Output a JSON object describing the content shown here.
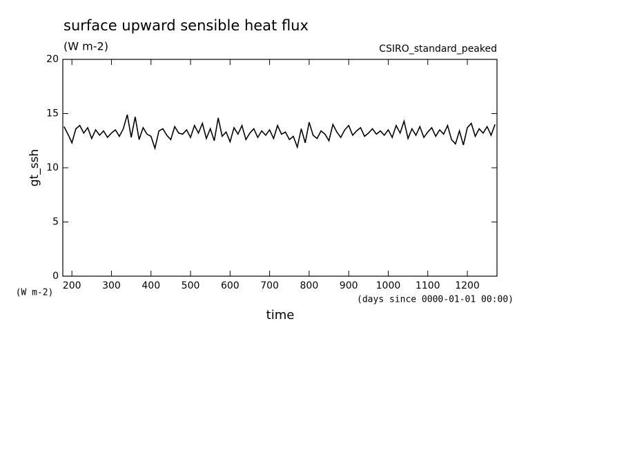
{
  "chart_data": {
    "type": "line",
    "title": "surface upward sensible heat flux",
    "subtitle": "(W m-2)",
    "annotation": "CSIRO_standard_peaked",
    "y_label": "gt_ssh",
    "y_units": "(W m-2)",
    "x_label": "time",
    "x_units": "(days since 0000-01-01 00:00)",
    "x": [
      180,
      190,
      200,
      210,
      220,
      230,
      240,
      250,
      260,
      270,
      280,
      290,
      300,
      310,
      320,
      330,
      340,
      350,
      360,
      370,
      380,
      390,
      400,
      410,
      420,
      430,
      440,
      450,
      460,
      470,
      480,
      490,
      500,
      510,
      520,
      530,
      540,
      550,
      560,
      570,
      580,
      590,
      600,
      610,
      620,
      630,
      640,
      650,
      660,
      670,
      680,
      690,
      700,
      710,
      720,
      730,
      740,
      750,
      760,
      770,
      780,
      790,
      800,
      810,
      820,
      830,
      840,
      850,
      860,
      870,
      880,
      890,
      900,
      910,
      920,
      930,
      940,
      950,
      960,
      970,
      980,
      990,
      1000,
      1010,
      1020,
      1030,
      1040,
      1050,
      1060,
      1070,
      1080,
      1090,
      1100,
      1110,
      1120,
      1130,
      1140,
      1150,
      1160,
      1170,
      1180,
      1190,
      1200,
      1210,
      1220,
      1230,
      1240,
      1250,
      1260,
      1270
    ],
    "series": [
      {
        "name": "gt_ssh",
        "color": "#000000",
        "values": [
          13.8,
          13.1,
          12.3,
          13.6,
          13.9,
          13.2,
          13.7,
          12.7,
          13.5,
          13.0,
          13.4,
          12.8,
          13.2,
          13.5,
          12.9,
          13.6,
          14.9,
          12.8,
          14.7,
          12.6,
          13.7,
          13.1,
          12.9,
          11.8,
          13.4,
          13.6,
          13.0,
          12.6,
          13.8,
          13.2,
          13.1,
          13.5,
          12.8,
          13.9,
          13.2,
          14.1,
          12.7,
          13.6,
          12.5,
          14.6,
          12.9,
          13.3,
          12.4,
          13.7,
          13.1,
          13.9,
          12.6,
          13.2,
          13.6,
          12.8,
          13.4,
          13.0,
          13.5,
          12.7,
          13.9,
          13.1,
          13.3,
          12.6,
          12.9,
          11.9,
          13.6,
          12.3,
          14.2,
          13.0,
          12.7,
          13.4,
          13.1,
          12.5,
          14.0,
          13.3,
          12.8,
          13.5,
          13.9,
          13.0,
          13.4,
          13.7,
          12.9,
          13.2,
          13.6,
          13.1,
          13.4,
          13.0,
          13.5,
          12.8,
          13.9,
          13.2,
          14.3,
          12.7,
          13.6,
          13.0,
          13.8,
          12.8,
          13.3,
          13.7,
          12.9,
          13.5,
          13.1,
          13.9,
          12.6,
          12.2,
          13.4,
          12.1,
          13.7,
          14.1,
          12.9,
          13.6,
          13.2,
          13.8,
          13.0,
          14.0
        ]
      }
    ],
    "xlim": [
      177,
      1275
    ],
    "xticks": [
      200,
      300,
      400,
      500,
      600,
      700,
      800,
      900,
      1000,
      1100,
      1200
    ],
    "ylim": [
      0,
      20
    ],
    "yticks": [
      0,
      5,
      10,
      15,
      20
    ]
  }
}
